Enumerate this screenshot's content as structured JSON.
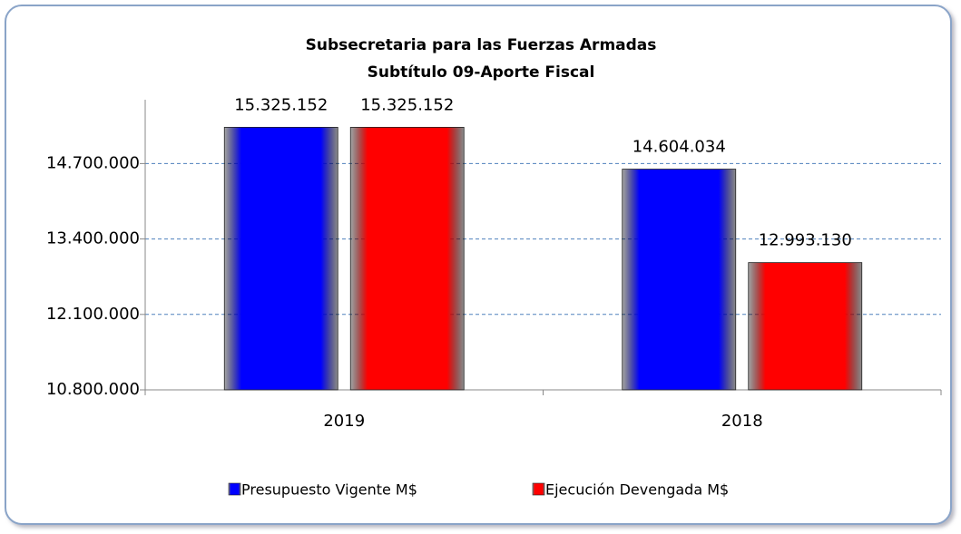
{
  "chart_data": {
    "type": "bar",
    "title": "Subsecretaria para las Fuerzas Armadas",
    "subtitle": "Subtítulo 09-Aporte Fiscal",
    "categories": [
      "2019",
      "2018"
    ],
    "series": [
      {
        "name": "Presupuesto Vigente M$",
        "color": "#0000ff",
        "values": [
          15325152,
          14604034
        ],
        "value_labels": [
          "15.325.152",
          "14.604.034"
        ]
      },
      {
        "name": "Ejecución Devengada M$",
        "color": "#ff0000",
        "values": [
          15325152,
          12993130
        ],
        "value_labels": [
          "15.325.152",
          "12.993.130"
        ]
      }
    ],
    "ylim": [
      10800000,
      15800000
    ],
    "yticks": [
      {
        "value": 10800000,
        "label": "10.800.000"
      },
      {
        "value": 12100000,
        "label": "12.100.000"
      },
      {
        "value": 13400000,
        "label": "13.400.000"
      },
      {
        "value": 14700000,
        "label": "14.700.000"
      }
    ],
    "grid": true,
    "legend": "bottom"
  }
}
